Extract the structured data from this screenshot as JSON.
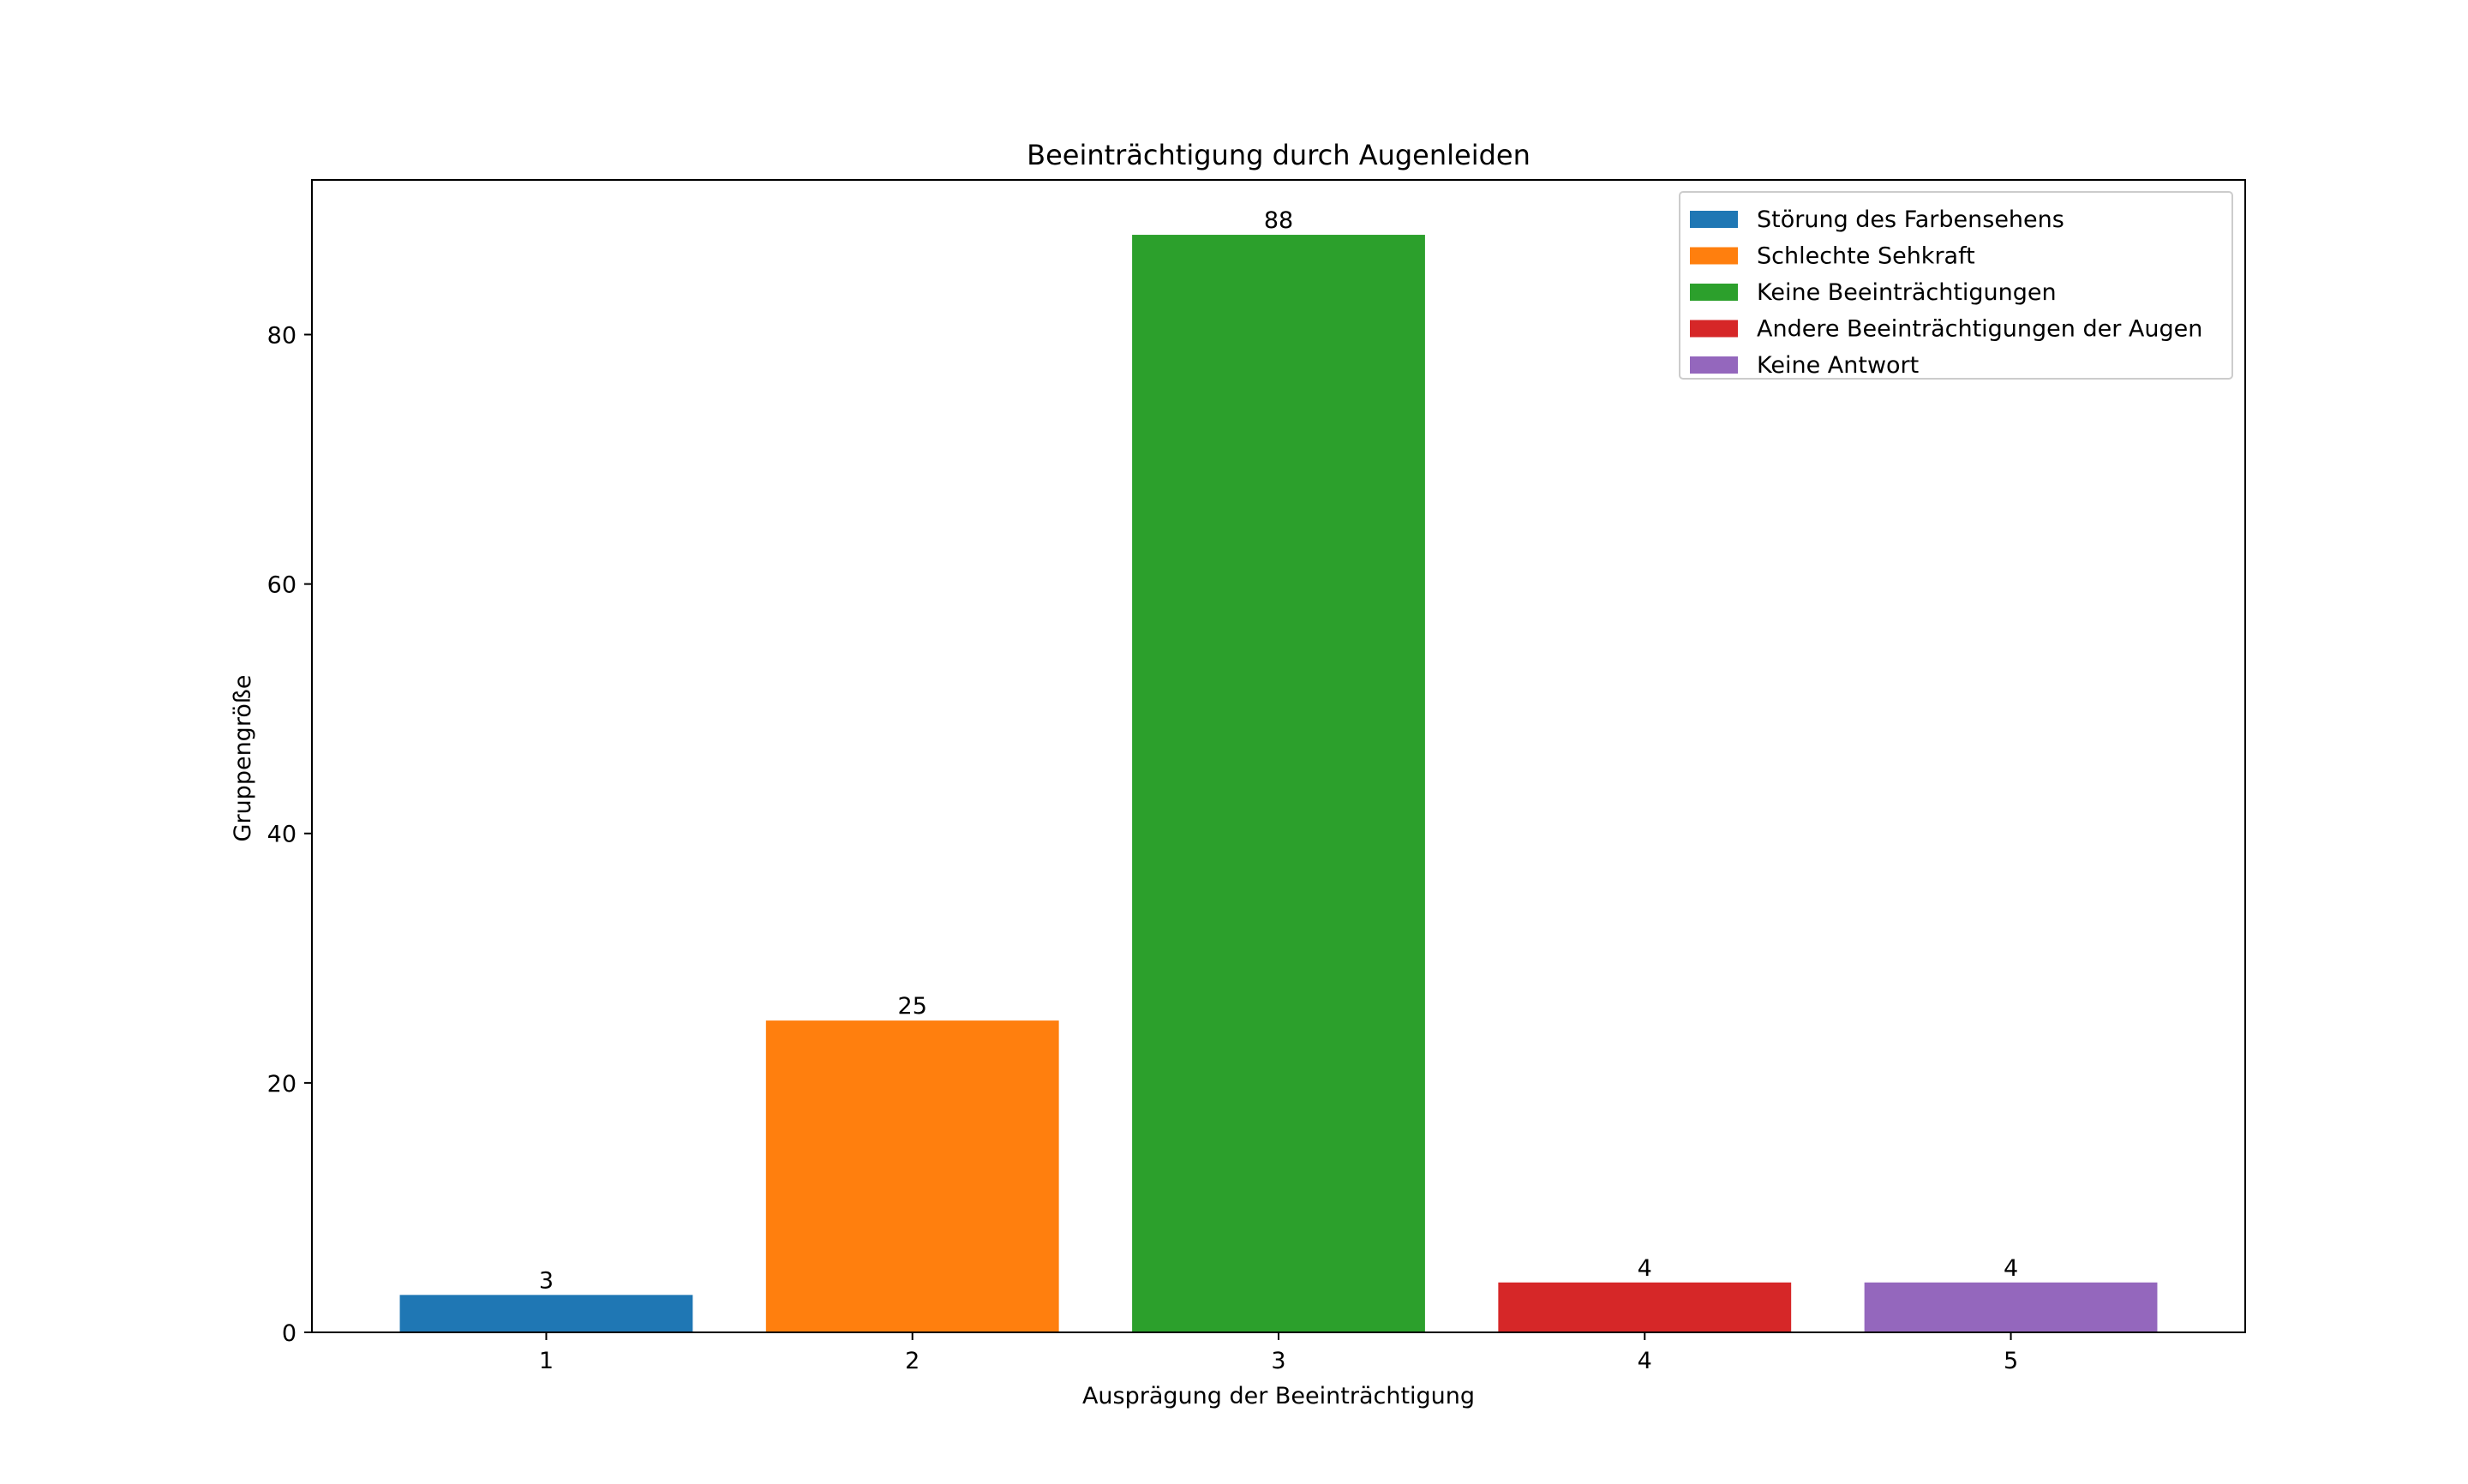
{
  "chart_data": {
    "type": "bar",
    "title": "Beeinträchtigung durch Augenleiden",
    "xlabel": "Ausprägung der Beeinträchtigung",
    "ylabel": "Gruppengröße",
    "categories": [
      "1",
      "2",
      "3",
      "4",
      "5"
    ],
    "x": [
      1,
      2,
      3,
      4,
      5
    ],
    "values": [
      3,
      25,
      88,
      4,
      4
    ],
    "bar_names": [
      "Störung des Farbensehens",
      "Schlechte Sehkraft",
      "Keine Beeinträchtigungen",
      "Andere Beeinträchtigungen der Augen",
      "Keine Antwort"
    ],
    "colors": [
      "#1f77b4",
      "#ff7f0e",
      "#2ca02c",
      "#d62728",
      "#9467bd"
    ],
    "data_labels": [
      "3",
      "25",
      "88",
      "4",
      "4"
    ],
    "ylim": [
      0,
      92.4
    ],
    "xlim": [
      0.36,
      5.64
    ],
    "yticks": [
      0,
      20,
      40,
      60,
      80
    ],
    "ytick_labels": [
      "0",
      "20",
      "40",
      "60",
      "80"
    ],
    "legend_position": "top-right",
    "grid": false
  }
}
